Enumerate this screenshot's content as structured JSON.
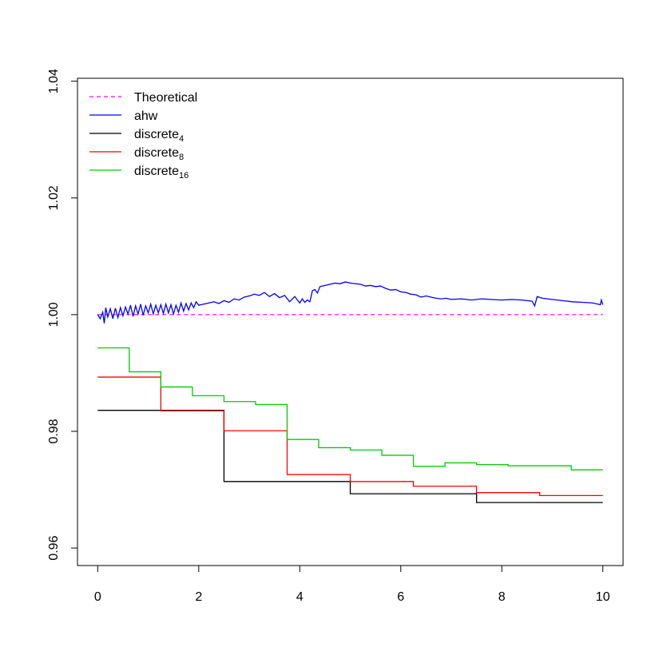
{
  "chart_data": {
    "type": "line",
    "xlim": [
      -0.4,
      10.4
    ],
    "ylim": [
      0.957,
      1.0405
    ],
    "x_ticks": [
      0,
      2,
      4,
      6,
      8,
      10
    ],
    "x_tick_labels": [
      "0",
      "2",
      "4",
      "6",
      "8",
      "10"
    ],
    "y_ticks": [
      0.96,
      0.98,
      1.0,
      1.02,
      1.04
    ],
    "y_tick_labels": [
      "0.96",
      "0.98",
      "1.00",
      "1.02",
      "1.04"
    ],
    "grid": false,
    "legend_position": "top-left",
    "legend": [
      {
        "key": "theoretical",
        "label": "Theoretical",
        "sub": "",
        "color": "#ff00ff",
        "dashed": true
      },
      {
        "key": "ahw",
        "label": "ahw",
        "sub": "",
        "color": "#0000ff",
        "dashed": false
      },
      {
        "key": "discrete4",
        "label": "discrete",
        "sub": "4",
        "color": "#000000",
        "dashed": false
      },
      {
        "key": "discrete8",
        "label": "discrete",
        "sub": "8",
        "color": "#ff0000",
        "dashed": false
      },
      {
        "key": "discrete16",
        "label": "discrete",
        "sub": "16",
        "color": "#00cd00",
        "dashed": false
      }
    ],
    "series": [
      {
        "key": "theoretical",
        "step": false,
        "dashed": true,
        "color": "#ff00ff",
        "x": [
          0,
          10
        ],
        "y": [
          1.0,
          1.0
        ]
      },
      {
        "key": "ahw",
        "step": false,
        "dashed": false,
        "color": "#0000ff",
        "x": [
          0,
          0.05,
          0.1,
          0.13,
          0.16,
          0.2,
          0.25,
          0.3,
          0.35,
          0.4,
          0.45,
          0.5,
          0.55,
          0.6,
          0.65,
          0.7,
          0.75,
          0.8,
          0.85,
          0.9,
          0.95,
          1.0,
          1.05,
          1.1,
          1.15,
          1.2,
          1.25,
          1.3,
          1.35,
          1.4,
          1.45,
          1.5,
          1.55,
          1.6,
          1.65,
          1.7,
          1.75,
          1.8,
          1.85,
          1.9,
          1.95,
          2.0,
          2.1,
          2.2,
          2.3,
          2.4,
          2.5,
          2.6,
          2.7,
          2.8,
          2.9,
          3.0,
          3.1,
          3.2,
          3.3,
          3.4,
          3.5,
          3.6,
          3.7,
          3.8,
          3.9,
          4.0,
          4.05,
          4.1,
          4.15,
          4.2,
          4.25,
          4.3,
          4.35,
          4.4,
          4.5,
          4.6,
          4.7,
          4.8,
          4.9,
          5.0,
          5.1,
          5.2,
          5.3,
          5.4,
          5.5,
          5.6,
          5.7,
          5.8,
          5.9,
          6.0,
          6.1,
          6.2,
          6.3,
          6.4,
          6.5,
          6.6,
          6.7,
          6.8,
          6.9,
          7.0,
          7.2,
          7.4,
          7.6,
          7.8,
          8.0,
          8.2,
          8.4,
          8.6,
          8.65,
          8.7,
          8.8,
          9.0,
          9.2,
          9.4,
          9.6,
          9.8,
          9.95,
          9.97,
          10.0
        ],
        "y": [
          1.0,
          0.9993,
          1.0004,
          0.9985,
          1.0012,
          0.9996,
          1.001,
          0.9993,
          1.0011,
          0.9995,
          1.0012,
          0.9998,
          1.0013,
          1.0001,
          1.0016,
          0.9997,
          1.0015,
          1.0001,
          1.0018,
          0.9999,
          1.0015,
          1.0003,
          1.0018,
          1.0001,
          1.0016,
          1.0003,
          1.0017,
          1.0002,
          1.0018,
          1.0003,
          1.0017,
          1.0001,
          1.0016,
          1.0004,
          1.002,
          1.0006,
          1.0019,
          1.0008,
          1.002,
          1.0012,
          1.0022,
          1.0016,
          1.0018,
          1.002,
          1.0022,
          1.0019,
          1.0024,
          1.0021,
          1.0027,
          1.0025,
          1.003,
          1.0032,
          1.0035,
          1.0033,
          1.0038,
          1.0031,
          1.0036,
          1.0029,
          1.0033,
          1.0022,
          1.0031,
          1.002,
          1.0027,
          1.0021,
          1.0025,
          1.0022,
          1.0041,
          1.0043,
          1.0037,
          1.0048,
          1.005,
          1.0052,
          1.0054,
          1.0053,
          1.0056,
          1.0054,
          1.0053,
          1.0052,
          1.0049,
          1.005,
          1.0048,
          1.0049,
          1.0045,
          1.0042,
          1.0043,
          1.0039,
          1.0038,
          1.0035,
          1.0034,
          1.003,
          1.0032,
          1.003,
          1.0028,
          1.0027,
          1.0028,
          1.0026,
          1.0027,
          1.0025,
          1.0027,
          1.0026,
          1.0025,
          1.0026,
          1.0025,
          1.0023,
          1.0015,
          1.0031,
          1.0028,
          1.0026,
          1.0024,
          1.0022,
          1.0021,
          1.002,
          1.0017,
          1.0025,
          1.0017
        ]
      },
      {
        "key": "discrete4",
        "step": true,
        "dashed": false,
        "color": "#000000",
        "x": [
          0,
          2.5,
          5.0,
          7.5,
          10
        ],
        "y": [
          0.9836,
          0.9714,
          0.9693,
          0.9678,
          0.9678
        ]
      },
      {
        "key": "discrete8",
        "step": true,
        "dashed": false,
        "color": "#ff0000",
        "x": [
          0,
          1.25,
          2.5,
          3.75,
          5.0,
          6.25,
          7.5,
          8.75,
          10
        ],
        "y": [
          0.9893,
          0.9835,
          0.9801,
          0.9726,
          0.9714,
          0.9706,
          0.9695,
          0.969,
          0.969
        ]
      },
      {
        "key": "discrete16",
        "step": true,
        "dashed": false,
        "color": "#00cd00",
        "x": [
          0,
          0.625,
          1.25,
          1.875,
          2.5,
          3.125,
          3.75,
          4.375,
          5.0,
          5.625,
          6.25,
          6.875,
          7.5,
          8.125,
          9.375,
          10
        ],
        "y": [
          0.9943,
          0.9902,
          0.9876,
          0.9861,
          0.9851,
          0.9846,
          0.9786,
          0.9772,
          0.9768,
          0.9759,
          0.974,
          0.9746,
          0.9743,
          0.9741,
          0.9734,
          0.9734
        ]
      }
    ]
  }
}
